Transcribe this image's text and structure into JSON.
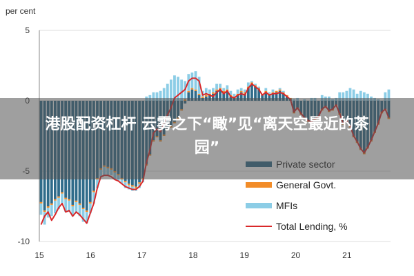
{
  "chart_data": {
    "type": "bar",
    "ylabel": "per cent",
    "ylim": [
      -10,
      5
    ],
    "yticks": [
      "5",
      "0",
      "-5",
      "-10"
    ],
    "xlim": [
      2015.0,
      2021.85
    ],
    "xticks": [
      "15",
      "16",
      "17",
      "18",
      "19",
      "20",
      "21"
    ],
    "grid": true,
    "legend_position": "bottom-right",
    "colors": {
      "private": "#2f6b8a",
      "govt": "#f28c28",
      "mfis": "#8ccde6",
      "line": "#d9282a",
      "grid": "#dddddd"
    },
    "series": [
      {
        "name": "Private sector",
        "values": [
          -7.2,
          -7.8,
          -7.5,
          -7.3,
          -7.0,
          -6.8,
          -6.5,
          -6.9,
          -7.0,
          -7.4,
          -7.1,
          -7.3,
          -7.6,
          -7.8,
          -7.2,
          -6.4,
          -5.5,
          -4.8,
          -4.6,
          -4.7,
          -4.8,
          -5.0,
          -5.2,
          -5.5,
          -5.7,
          -5.9,
          -6.0,
          -6.1,
          -5.8,
          -5.5,
          -4.5,
          -3.8,
          -2.8,
          -2.5,
          -2.8,
          -2.4,
          -2.0,
          -1.8,
          -1.5,
          -1.2,
          -0.6,
          -0.2,
          0.6,
          0.8,
          0.7,
          0.4,
          0.2,
          0.3,
          0.4,
          0.5,
          0.7,
          0.8,
          0.6,
          0.7,
          0.3,
          0.2,
          0.4,
          0.6,
          0.5,
          0.9,
          1.2,
          1.0,
          0.8,
          0.4,
          0.6,
          0.4,
          0.5,
          0.6,
          0.7,
          0.5,
          0.3,
          0.1,
          -0.8,
          -0.5,
          -0.9,
          -1.2,
          -1.4,
          -1.5,
          -1.3,
          -1.1,
          -0.6,
          -0.4,
          -0.7,
          -0.6,
          -0.3,
          -0.9,
          -1.6,
          -1.4,
          -1.8,
          -2.5,
          -2.9,
          -3.4,
          -3.7,
          -3.3,
          -2.8,
          -2.2,
          -1.6,
          -0.8,
          -0.6,
          -1.2
        ]
      },
      {
        "name": "General Govt.",
        "values": [
          -0.1,
          -0.1,
          -0.1,
          -0.1,
          -0.1,
          -0.1,
          -0.1,
          -0.1,
          -0.1,
          -0.1,
          -0.1,
          -0.1,
          -0.1,
          -0.1,
          -0.1,
          -0.1,
          -0.1,
          -0.1,
          -0.1,
          -0.1,
          -0.1,
          -0.1,
          -0.1,
          -0.1,
          -0.1,
          -0.1,
          -0.1,
          -0.1,
          -0.1,
          -0.1,
          -0.1,
          -0.1,
          -0.1,
          -0.1,
          -0.1,
          -0.1,
          -0.1,
          -0.1,
          -0.1,
          -0.1,
          -0.1,
          0.1,
          0.1,
          0.1,
          0.1,
          0.1,
          0.1,
          0.1,
          0.1,
          0.1,
          0.1,
          0.1,
          0.1,
          0.1,
          0.1,
          0.1,
          0.1,
          0.1,
          0.1,
          0.1,
          0.1,
          0.1,
          0.1,
          0.1,
          0.1,
          0.1,
          0.1,
          0.1,
          0.1,
          0.1,
          0.1,
          0.1,
          -0.1,
          -0.1,
          -0.1,
          -0.1,
          -0.1,
          -0.1,
          -0.1,
          -0.1,
          -0.1,
          -0.1,
          -0.1,
          -0.1,
          -0.1,
          -0.1,
          -0.1,
          -0.1,
          -0.1,
          -0.1,
          -0.1,
          -0.1,
          -0.1,
          -0.1,
          -0.1,
          -0.1,
          -0.1,
          -0.1,
          -0.1,
          -0.1
        ]
      },
      {
        "name": "MFIs",
        "values": [
          -0.8,
          -0.9,
          -0.7,
          -0.8,
          -0.9,
          -0.8,
          -0.7,
          -0.9,
          -0.8,
          -0.7,
          -0.8,
          -0.8,
          -0.9,
          -0.8,
          -0.7,
          -0.8,
          -0.6,
          -0.5,
          -0.6,
          -0.5,
          -0.4,
          -0.5,
          -0.4,
          -0.3,
          -0.4,
          -0.3,
          -0.3,
          -0.2,
          -0.3,
          -0.2,
          0.3,
          0.4,
          0.6,
          0.6,
          0.7,
          0.9,
          1.2,
          1.5,
          1.8,
          1.7,
          1.5,
          1.3,
          1.2,
          1.1,
          1.3,
          1.2,
          0.4,
          0.5,
          0.3,
          0.3,
          0.4,
          0.3,
          0.2,
          0.3,
          0.3,
          0.2,
          0.3,
          0.2,
          0.2,
          0.3,
          0.1,
          0.1,
          0.1,
          0.0,
          0.2,
          0.1,
          0.2,
          0.0,
          0.1,
          0.1,
          0.0,
          0.0,
          0.1,
          0.2,
          0.0,
          0.1,
          0.0,
          0.2,
          0.2,
          0.0,
          0.4,
          0.3,
          0.3,
          0.1,
          0.2,
          0.6,
          0.6,
          0.7,
          0.9,
          0.8,
          0.5,
          0.7,
          0.6,
          0.5,
          0.3,
          0.2,
          0.1,
          0.0,
          0.6,
          0.8
        ]
      }
    ],
    "line": {
      "name": "Total Lending, %",
      "values": [
        -8.8,
        -8.2,
        -7.9,
        -8.5,
        -8.1,
        -7.6,
        -7.3,
        -7.9,
        -7.8,
        -8.2,
        -7.9,
        -8.1,
        -8.4,
        -8.7,
        -8.0,
        -7.3,
        -6.2,
        -5.4,
        -5.3,
        -5.3,
        -5.4,
        -5.6,
        -5.7,
        -5.9,
        -6.1,
        -6.2,
        -6.3,
        -6.3,
        -6.1,
        -5.7,
        -4.4,
        -3.5,
        -2.3,
        -2.0,
        -2.2,
        -1.6,
        -1.0,
        -0.5,
        0.2,
        0.4,
        0.6,
        0.8,
        1.4,
        1.6,
        1.6,
        1.4,
        0.4,
        0.5,
        0.4,
        0.3,
        0.6,
        0.8,
        0.5,
        0.7,
        0.3,
        0.2,
        0.4,
        0.5,
        0.4,
        0.9,
        1.2,
        1.0,
        0.8,
        0.4,
        0.6,
        0.4,
        0.5,
        0.5,
        0.6,
        0.5,
        0.3,
        0.1,
        -0.8,
        -0.5,
        -0.9,
        -1.2,
        -1.4,
        -1.5,
        -1.3,
        -1.1,
        -0.6,
        -0.4,
        -0.7,
        -0.6,
        -0.3,
        -0.9,
        -1.6,
        -1.4,
        -1.8,
        -2.5,
        -2.9,
        -3.4,
        -3.7,
        -3.3,
        -2.8,
        -2.2,
        -1.6,
        -0.8,
        -0.6,
        -1.2
      ]
    }
  },
  "overlay": {
    "banner_line1": "港股配资杠杆 云雾之下“瞰”见“离天空最近的茶",
    "banner_line2": "园”"
  }
}
